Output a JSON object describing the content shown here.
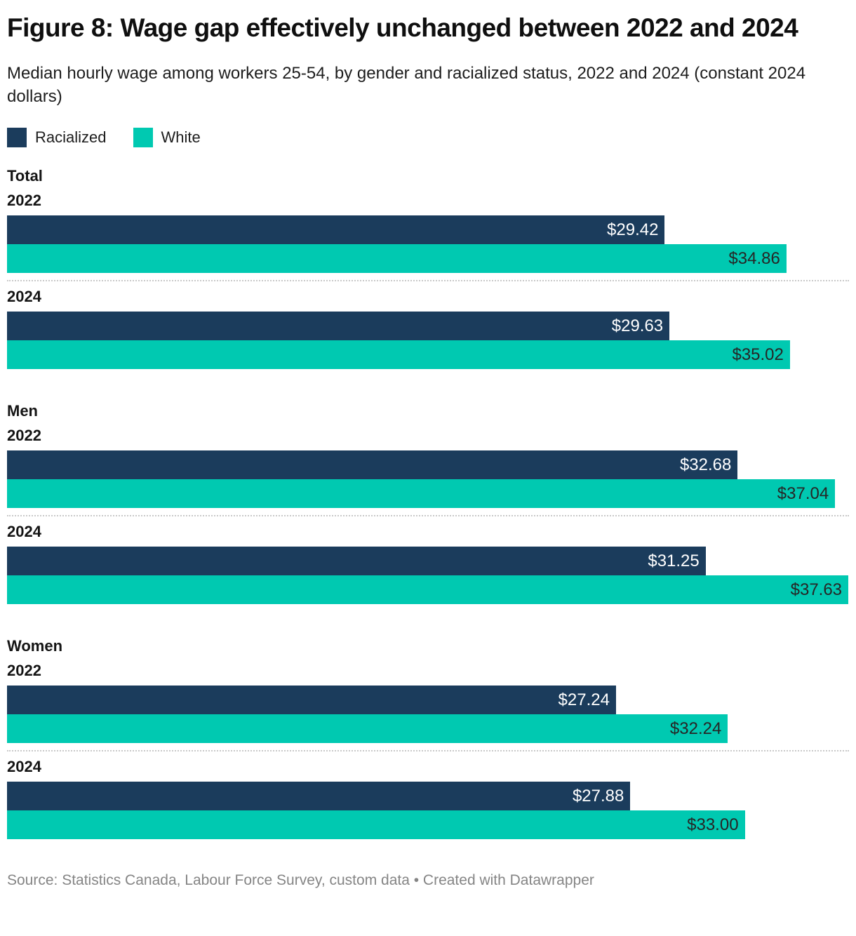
{
  "header": {
    "title": "Figure 8: Wage gap effectively unchanged between 2022 and 2024",
    "subtitle": "Median hourly wage among workers 25-54, by gender and racialized status, 2022 and 2024 (constant 2024 dollars)"
  },
  "legend": [
    {
      "label": "Racialized",
      "color": "#1b3c5c"
    },
    {
      "label": "White",
      "color": "#00c9b1"
    }
  ],
  "footer": {
    "text": "Source: Statistics Canada, Labour Force Survey, custom data • Created with Datawrapper"
  },
  "chart_data": {
    "type": "bar",
    "orientation": "horizontal",
    "title": "Figure 8: Wage gap effectively unchanged between 2022 and 2024",
    "subtitle": "Median hourly wage among workers 25-54, by gender and racialized status, 2022 and 2024 (constant 2024 dollars)",
    "unit": "$ per hour (constant 2024 dollars)",
    "axis_min": 0,
    "axis_max": 37.66,
    "grid": false,
    "legend_position": "top",
    "series_names": [
      "Racialized",
      "White"
    ],
    "colors": {
      "Racialized": "#1b3c5c",
      "White": "#00c9b1"
    },
    "label_colors": {
      "Racialized": "#ffffff",
      "White": "#262626"
    },
    "groups": [
      {
        "label": "Total",
        "years": [
          {
            "year": "2022",
            "Racialized": 29.42,
            "White": 34.86,
            "Racialized_label": "$29.42",
            "White_label": "$34.86"
          },
          {
            "year": "2024",
            "Racialized": 29.63,
            "White": 35.02,
            "Racialized_label": "$29.63",
            "White_label": "$35.02"
          }
        ]
      },
      {
        "label": "Men",
        "years": [
          {
            "year": "2022",
            "Racialized": 32.68,
            "White": 37.04,
            "Racialized_label": "$32.68",
            "White_label": "$37.04"
          },
          {
            "year": "2024",
            "Racialized": 31.25,
            "White": 37.63,
            "Racialized_label": "$31.25",
            "White_label": "$37.63"
          }
        ]
      },
      {
        "label": "Women",
        "years": [
          {
            "year": "2022",
            "Racialized": 27.24,
            "White": 32.24,
            "Racialized_label": "$27.24",
            "White_label": "$32.24"
          },
          {
            "year": "2024",
            "Racialized": 27.88,
            "White": 33.0,
            "Racialized_label": "$27.88",
            "White_label": "$33.00"
          }
        ]
      }
    ]
  }
}
